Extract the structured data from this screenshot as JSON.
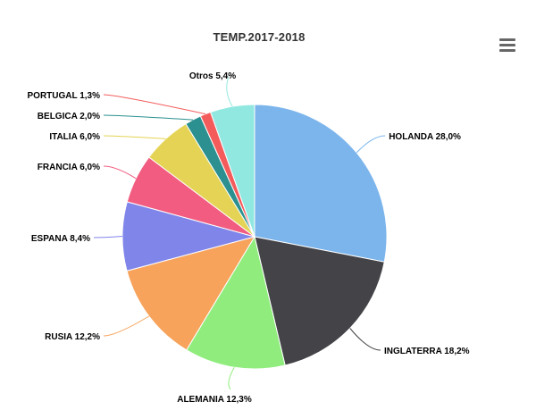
{
  "chart_data": {
    "type": "pie",
    "title": "TEMP.2017-2018",
    "slices": [
      {
        "name": "HOLANDA",
        "value": 28.0,
        "label": "HOLANDA 28,0%",
        "color": "#7cb5ec"
      },
      {
        "name": "INGLATERRA",
        "value": 18.2,
        "label": "INGLATERRA 18,2%",
        "color": "#434348"
      },
      {
        "name": "ALEMANIA",
        "value": 12.3,
        "label": "ALEMANIA 12,3%",
        "color": "#90ed7d"
      },
      {
        "name": "RUSIA",
        "value": 12.2,
        "label": "RUSIA 12,2%",
        "color": "#f7a35c"
      },
      {
        "name": "ESPANA",
        "value": 8.4,
        "label": "ESPANA 8,4%",
        "color": "#8085e9"
      },
      {
        "name": "FRANCIA",
        "value": 6.0,
        "label": "FRANCIA 6,0%",
        "color": "#f15c80"
      },
      {
        "name": "ITALIA",
        "value": 6.0,
        "label": "ITALIA 6,0%",
        "color": "#e4d354"
      },
      {
        "name": "BELGICA",
        "value": 2.0,
        "label": "BELGICA 2,0%",
        "color": "#2b908f"
      },
      {
        "name": "PORTUGAL",
        "value": 1.3,
        "label": "PORTUGAL 1,3%",
        "color": "#f45b5b"
      },
      {
        "name": "Otros",
        "value": 5.4,
        "label": "Otros 5,4%",
        "color": "#91e8e1"
      }
    ]
  },
  "menu": {
    "icon": "hamburger-menu-icon"
  }
}
